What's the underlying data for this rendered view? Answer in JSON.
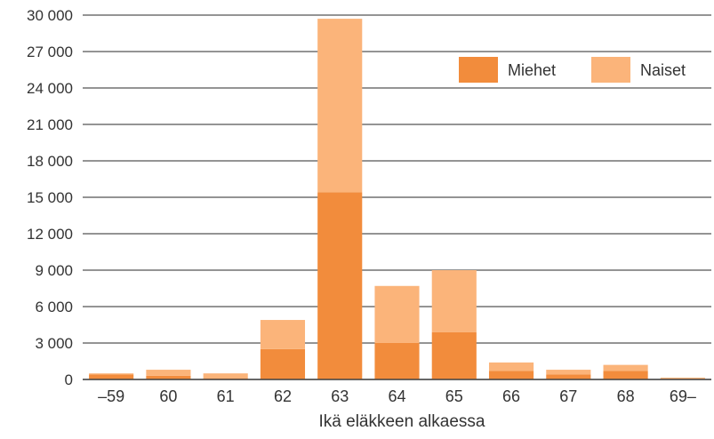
{
  "chart_data": {
    "type": "bar",
    "stacked": true,
    "title": "",
    "xlabel": "Ikä eläkkeen alkaessa",
    "ylabel": "",
    "categories": [
      "–59",
      "60",
      "61",
      "62",
      "63",
      "64",
      "65",
      "66",
      "67",
      "68",
      "69–"
    ],
    "series": [
      {
        "name": "Miehet",
        "color": "#f28c3c",
        "values": [
          400,
          300,
          100,
          2500,
          15400,
          3000,
          3900,
          700,
          400,
          700,
          50
        ]
      },
      {
        "name": "Naiset",
        "color": "#fbb47a",
        "values": [
          100,
          500,
          400,
          2400,
          14300,
          4700,
          5100,
          700,
          400,
          500,
          100
        ]
      }
    ],
    "ylim": [
      0,
      30000
    ],
    "yticks": [
      0,
      3000,
      6000,
      9000,
      12000,
      15000,
      18000,
      21000,
      24000,
      27000,
      30000
    ],
    "ytick_labels": [
      "0",
      "3 000",
      "6 000",
      "9 000",
      "12 000",
      "15 000",
      "18 000",
      "21 000",
      "24 000",
      "27 000",
      "30 000"
    ],
    "grid": true,
    "legend_position": "top-right",
    "gridline_color": "#555555"
  }
}
